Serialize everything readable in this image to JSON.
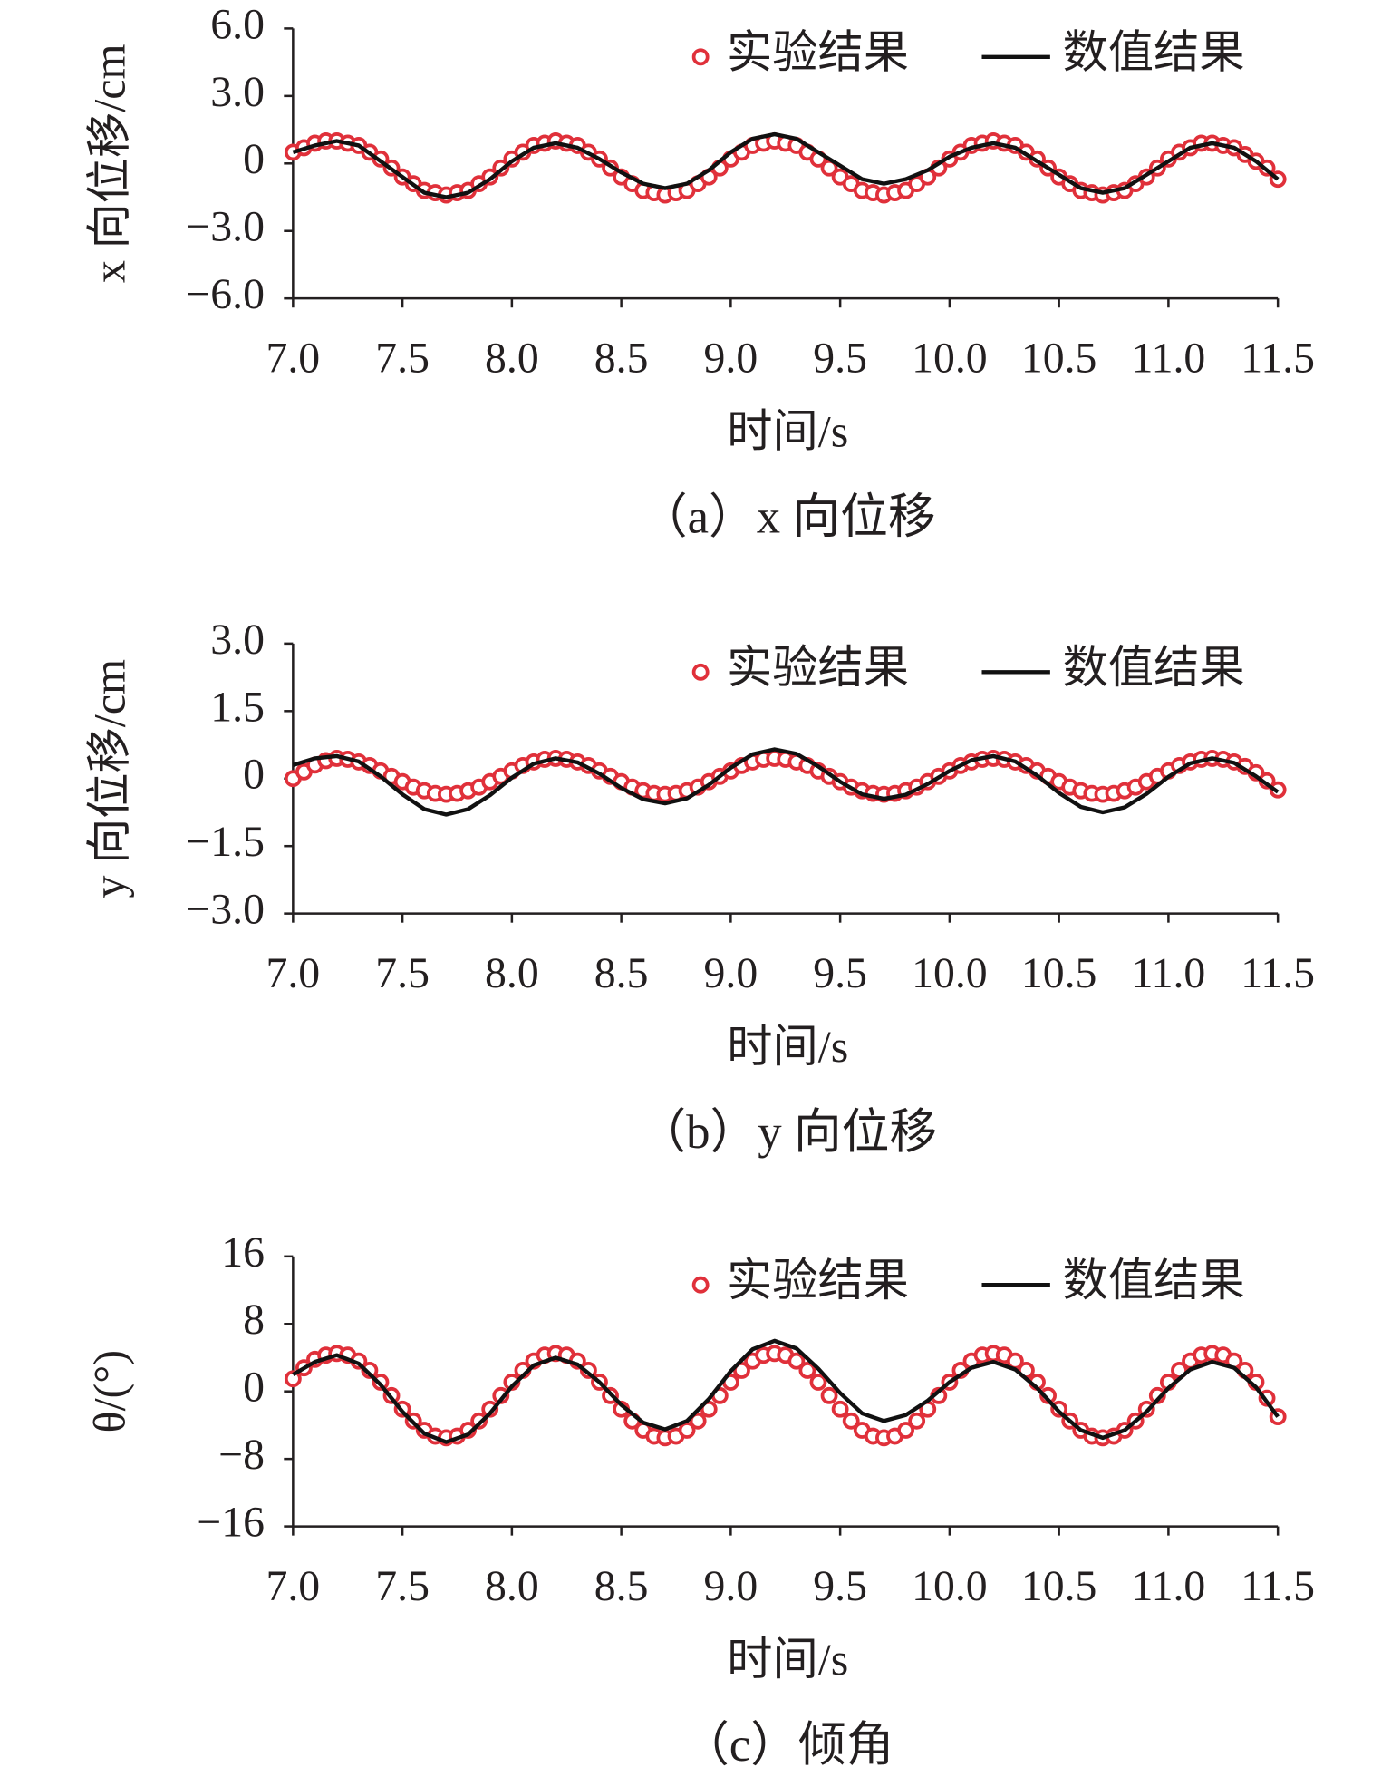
{
  "chart_data": [
    {
      "type": "line",
      "title": "（a）x 向位移",
      "x_label": "时间/s",
      "y_label": "x 向位移/cm",
      "legend": "upper right",
      "xlim": [
        7,
        11.5
      ],
      "xticks": [
        {
          "value": 7,
          "label": "7.0"
        },
        7.5,
        {
          "value": 8,
          "label": "8.0"
        },
        8.5,
        {
          "value": 9,
          "label": "9.0"
        },
        9.5,
        {
          "value": 10,
          "label": "10.0"
        },
        10.5,
        {
          "value": 11,
          "label": "11.0"
        },
        11.5
      ],
      "ylim": [
        -6,
        6
      ],
      "yticks": [
        {
          "value": -6,
          "label": "−6.0"
        },
        {
          "value": -3,
          "label": "−3.0"
        },
        0,
        {
          "value": 3,
          "label": "3.0"
        },
        {
          "value": 6,
          "label": "6.0"
        }
      ],
      "series": [
        {
          "name": "实验结果",
          "mode": "markers",
          "color": "#e0303a",
          "x": [
            7,
            7.05,
            7.1,
            7.15,
            7.2,
            7.25,
            7.3,
            7.35,
            7.4,
            7.45,
            7.5,
            7.55,
            7.6,
            7.65,
            7.7,
            7.75,
            7.8,
            7.85,
            7.9,
            7.95,
            8,
            8.05,
            8.1,
            8.15,
            8.2,
            8.25,
            8.3,
            8.35,
            8.4,
            8.45,
            8.5,
            8.55,
            8.6,
            8.65,
            8.7,
            8.75,
            8.8,
            8.85,
            8.9,
            8.95,
            9,
            9.05,
            9.1,
            9.15,
            9.2,
            9.25,
            9.3,
            9.35,
            9.4,
            9.45,
            9.5,
            9.55,
            9.6,
            9.65,
            9.7,
            9.75,
            9.8,
            9.85,
            9.9,
            9.95,
            10,
            10.05,
            10.1,
            10.15,
            10.2,
            10.25,
            10.3,
            10.35,
            10.4,
            10.45,
            10.5,
            10.55,
            10.6,
            10.65,
            10.7,
            10.75,
            10.8,
            10.85,
            10.9,
            10.95,
            11,
            11.05,
            11.1,
            11.15,
            11.2,
            11.25,
            11.3,
            11.35,
            11.4,
            11.45,
            11.5
          ],
          "values": [
            0.5,
            0.7,
            0.9,
            1.0,
            1.0,
            0.9,
            0.8,
            0.5,
            0.2,
            -0.2,
            -0.6,
            -0.9,
            -1.2,
            -1.3,
            -1.4,
            -1.3,
            -1.2,
            -0.9,
            -0.6,
            -0.2,
            0.2,
            0.5,
            0.8,
            0.9,
            1.0,
            0.9,
            0.8,
            0.5,
            0.2,
            -0.2,
            -0.6,
            -0.9,
            -1.2,
            -1.3,
            -1.4,
            -1.3,
            -1.2,
            -0.9,
            -0.6,
            -0.2,
            0.2,
            0.5,
            0.8,
            0.9,
            1.0,
            0.9,
            0.8,
            0.5,
            0.2,
            -0.2,
            -0.6,
            -0.9,
            -1.2,
            -1.3,
            -1.4,
            -1.3,
            -1.2,
            -0.9,
            -0.6,
            -0.2,
            0.2,
            0.5,
            0.8,
            0.9,
            1.0,
            0.9,
            0.8,
            0.5,
            0.2,
            -0.2,
            -0.6,
            -0.9,
            -1.2,
            -1.3,
            -1.4,
            -1.3,
            -1.2,
            -0.9,
            -0.6,
            -0.2,
            0.2,
            0.5,
            0.7,
            0.9,
            0.9,
            0.8,
            0.7,
            0.4,
            0.1,
            -0.2,
            -0.7
          ]
        },
        {
          "name": "数值结果",
          "mode": "line",
          "color": "#111111",
          "x": [
            7,
            7.1,
            7.2,
            7.3,
            7.4,
            7.5,
            7.6,
            7.7,
            7.8,
            7.9,
            8,
            8.1,
            8.2,
            8.3,
            8.4,
            8.5,
            8.6,
            8.7,
            8.8,
            8.9,
            9,
            9.1,
            9.2,
            9.3,
            9.4,
            9.5,
            9.6,
            9.7,
            9.8,
            9.9,
            10,
            10.1,
            10.2,
            10.3,
            10.4,
            10.5,
            10.6,
            10.7,
            10.8,
            10.9,
            11,
            11.1,
            11.2,
            11.3,
            11.4,
            11.5
          ],
          "values": [
            0.5,
            0.8,
            1.0,
            0.8,
            0.1,
            -0.6,
            -1.3,
            -1.5,
            -1.3,
            -0.7,
            0.1,
            0.7,
            0.9,
            0.7,
            0.2,
            -0.4,
            -0.9,
            -1.1,
            -0.9,
            -0.3,
            0.5,
            1.1,
            1.3,
            1.1,
            0.5,
            -0.1,
            -0.7,
            -0.9,
            -0.7,
            -0.3,
            0.3,
            0.7,
            0.9,
            0.7,
            0.1,
            -0.5,
            -1.1,
            -1.3,
            -1.1,
            -0.5,
            0.1,
            0.7,
            0.9,
            0.7,
            0.1,
            -0.7
          ]
        }
      ]
    },
    {
      "type": "line",
      "title": "（b）y 向位移",
      "x_label": "时间/s",
      "y_label": "y 向位移/cm",
      "legend": "upper right",
      "xlim": [
        7,
        11.5
      ],
      "xticks": [
        {
          "value": 7,
          "label": "7.0"
        },
        7.5,
        {
          "value": 8,
          "label": "8.0"
        },
        8.5,
        {
          "value": 9,
          "label": "9.0"
        },
        9.5,
        {
          "value": 10,
          "label": "10.0"
        },
        10.5,
        {
          "value": 11,
          "label": "11.0"
        },
        11.5
      ],
      "ylim": [
        -3,
        3
      ],
      "yticks": [
        {
          "value": -3,
          "label": "−3.0"
        },
        {
          "value": -1.5,
          "label": "−1.5"
        },
        0,
        1.5,
        {
          "value": 3,
          "label": "3.0"
        }
      ],
      "series": [
        {
          "name": "实验结果",
          "mode": "markers",
          "color": "#e0303a",
          "x": [
            7,
            7.05,
            7.1,
            7.15,
            7.2,
            7.25,
            7.3,
            7.35,
            7.4,
            7.45,
            7.5,
            7.55,
            7.6,
            7.65,
            7.7,
            7.75,
            7.8,
            7.85,
            7.9,
            7.95,
            8,
            8.05,
            8.1,
            8.15,
            8.2,
            8.25,
            8.3,
            8.35,
            8.4,
            8.45,
            8.5,
            8.55,
            8.6,
            8.65,
            8.7,
            8.75,
            8.8,
            8.85,
            8.9,
            8.95,
            9,
            9.05,
            9.1,
            9.15,
            9.2,
            9.25,
            9.3,
            9.35,
            9.4,
            9.45,
            9.5,
            9.55,
            9.6,
            9.65,
            9.7,
            9.75,
            9.8,
            9.85,
            9.9,
            9.95,
            10,
            10.05,
            10.1,
            10.15,
            10.2,
            10.25,
            10.3,
            10.35,
            10.4,
            10.45,
            10.5,
            10.55,
            10.6,
            10.65,
            10.7,
            10.75,
            10.8,
            10.85,
            10.9,
            10.95,
            11,
            11.05,
            11.1,
            11.15,
            11.2,
            11.25,
            11.3,
            11.35,
            11.4,
            11.45,
            11.5
          ],
          "values": [
            0,
            0.15,
            0.3,
            0.4,
            0.45,
            0.43,
            0.37,
            0.29,
            0.17,
            0.05,
            -0.07,
            -0.19,
            -0.27,
            -0.33,
            -0.35,
            -0.33,
            -0.27,
            -0.19,
            -0.07,
            0.05,
            0.17,
            0.29,
            0.37,
            0.43,
            0.45,
            0.43,
            0.37,
            0.29,
            0.17,
            0.05,
            -0.07,
            -0.19,
            -0.27,
            -0.33,
            -0.35,
            -0.33,
            -0.27,
            -0.19,
            -0.07,
            0.05,
            0.17,
            0.29,
            0.37,
            0.43,
            0.45,
            0.43,
            0.37,
            0.29,
            0.17,
            0.05,
            -0.07,
            -0.19,
            -0.27,
            -0.33,
            -0.35,
            -0.33,
            -0.27,
            -0.19,
            -0.07,
            0.05,
            0.17,
            0.29,
            0.37,
            0.43,
            0.45,
            0.43,
            0.37,
            0.29,
            0.17,
            0.05,
            -0.07,
            -0.19,
            -0.27,
            -0.33,
            -0.35,
            -0.33,
            -0.27,
            -0.19,
            -0.07,
            0.05,
            0.17,
            0.29,
            0.37,
            0.43,
            0.45,
            0.43,
            0.37,
            0.27,
            0.13,
            -0.05,
            -0.25
          ]
        },
        {
          "name": "数值结果",
          "mode": "line",
          "color": "#111111",
          "x": [
            7,
            7.1,
            7.2,
            7.3,
            7.4,
            7.5,
            7.6,
            7.7,
            7.8,
            7.9,
            8,
            8.1,
            8.2,
            8.3,
            8.4,
            8.5,
            8.6,
            8.7,
            8.8,
            8.9,
            9,
            9.1,
            9.2,
            9.3,
            9.4,
            9.5,
            9.6,
            9.7,
            9.8,
            9.9,
            10,
            10.1,
            10.2,
            10.3,
            10.4,
            10.5,
            10.6,
            10.7,
            10.8,
            10.9,
            11,
            11.1,
            11.2,
            11.3,
            11.4,
            11.5
          ],
          "values": [
            0.3,
            0.45,
            0.5,
            0.38,
            0.05,
            -0.35,
            -0.68,
            -0.8,
            -0.68,
            -0.37,
            0.02,
            0.33,
            0.45,
            0.36,
            0.11,
            -0.21,
            -0.46,
            -0.55,
            -0.44,
            -0.14,
            0.24,
            0.54,
            0.65,
            0.55,
            0.27,
            -0.07,
            -0.35,
            -0.45,
            -0.36,
            -0.12,
            0.17,
            0.41,
            0.5,
            0.38,
            0.07,
            -0.32,
            -0.63,
            -0.75,
            -0.64,
            -0.34,
            0.04,
            0.34,
            0.45,
            0.35,
            0.05,
            -0.3
          ]
        }
      ]
    },
    {
      "type": "line",
      "title": "（c）倾角",
      "x_label": "时间/s",
      "y_label": "θ/(°)",
      "legend": "upper right",
      "xlim": [
        7,
        11.5
      ],
      "xticks": [
        {
          "value": 7,
          "label": "7.0"
        },
        7.5,
        {
          "value": 8,
          "label": "8.0"
        },
        8.5,
        {
          "value": 9,
          "label": "9.0"
        },
        9.5,
        {
          "value": 10,
          "label": "10.0"
        },
        10.5,
        {
          "value": 11,
          "label": "11.0"
        },
        11.5
      ],
      "ylim": [
        -16,
        16
      ],
      "yticks": [
        {
          "value": -16,
          "label": "−16"
        },
        {
          "value": -8,
          "label": "−8"
        },
        0,
        8,
        16
      ],
      "series": [
        {
          "name": "实验结果",
          "mode": "markers",
          "color": "#e0303a",
          "x": [
            7,
            7.05,
            7.1,
            7.15,
            7.2,
            7.25,
            7.3,
            7.35,
            7.4,
            7.45,
            7.5,
            7.55,
            7.6,
            7.65,
            7.7,
            7.75,
            7.8,
            7.85,
            7.9,
            7.95,
            8,
            8.05,
            8.1,
            8.15,
            8.2,
            8.25,
            8.3,
            8.35,
            8.4,
            8.45,
            8.5,
            8.55,
            8.6,
            8.65,
            8.7,
            8.75,
            8.8,
            8.85,
            8.9,
            8.95,
            9,
            9.05,
            9.1,
            9.15,
            9.2,
            9.25,
            9.3,
            9.35,
            9.4,
            9.45,
            9.5,
            9.55,
            9.6,
            9.65,
            9.7,
            9.75,
            9.8,
            9.85,
            9.9,
            9.95,
            10,
            10.05,
            10.1,
            10.15,
            10.2,
            10.25,
            10.3,
            10.35,
            10.4,
            10.45,
            10.5,
            10.55,
            10.6,
            10.65,
            10.7,
            10.75,
            10.8,
            10.85,
            10.9,
            10.95,
            11,
            11.05,
            11.1,
            11.15,
            11.2,
            11.25,
            11.3,
            11.35,
            11.4,
            11.45,
            11.5
          ],
          "values": [
            1.5,
            2.8,
            3.8,
            4.3,
            4.5,
            4.3,
            3.6,
            2.5,
            1.1,
            -0.5,
            -2.1,
            -3.5,
            -4.6,
            -5.3,
            -5.5,
            -5.3,
            -4.6,
            -3.5,
            -2.1,
            -0.5,
            1.1,
            2.5,
            3.6,
            4.3,
            4.5,
            4.3,
            3.6,
            2.5,
            1.1,
            -0.5,
            -2.1,
            -3.5,
            -4.6,
            -5.3,
            -5.5,
            -5.3,
            -4.6,
            -3.5,
            -2.1,
            -0.5,
            1.1,
            2.5,
            3.6,
            4.3,
            4.5,
            4.3,
            3.6,
            2.5,
            1.1,
            -0.5,
            -2.1,
            -3.5,
            -4.6,
            -5.3,
            -5.5,
            -5.3,
            -4.6,
            -3.5,
            -2.1,
            -0.5,
            1.1,
            2.5,
            3.6,
            4.3,
            4.5,
            4.3,
            3.6,
            2.5,
            1.1,
            -0.5,
            -2.1,
            -3.5,
            -4.6,
            -5.3,
            -5.5,
            -5.3,
            -4.6,
            -3.5,
            -2.1,
            -0.5,
            1.1,
            2.5,
            3.6,
            4.3,
            4.5,
            4.3,
            3.6,
            2.5,
            1.1,
            -0.8,
            -3.0
          ]
        },
        {
          "name": "数值结果",
          "mode": "line",
          "color": "#111111",
          "x": [
            7,
            7.1,
            7.2,
            7.3,
            7.4,
            7.5,
            7.6,
            7.7,
            7.8,
            7.9,
            8,
            8.1,
            8.2,
            8.3,
            8.4,
            8.5,
            8.6,
            8.7,
            8.8,
            8.9,
            9,
            9.1,
            9.2,
            9.3,
            9.4,
            9.5,
            9.6,
            9.7,
            9.8,
            9.9,
            10,
            10.1,
            10.2,
            10.3,
            10.4,
            10.5,
            10.6,
            10.7,
            10.8,
            10.9,
            11,
            11.1,
            11.2,
            11.3,
            11.4,
            11.5
          ],
          "values": [
            2,
            3.5,
            4.3,
            3.3,
            0.8,
            -2.4,
            -5.0,
            -6.0,
            -5.1,
            -2.6,
            0.6,
            3.1,
            4.0,
            3.2,
            1.1,
            -1.6,
            -3.7,
            -4.5,
            -3.5,
            -0.9,
            2.4,
            5.0,
            6.0,
            5.1,
            2.7,
            -0.2,
            -2.6,
            -3.5,
            -2.8,
            -1.1,
            1.1,
            2.8,
            3.5,
            2.6,
            0.4,
            -2.4,
            -4.6,
            -5.5,
            -4.6,
            -2.4,
            0.4,
            2.6,
            3.5,
            2.8,
            0.5,
            -3.0
          ]
        }
      ]
    }
  ]
}
